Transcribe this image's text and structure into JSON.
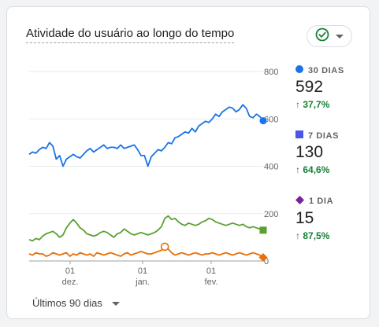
{
  "card": {
    "title": "Atividade do usuário ao longo do tempo",
    "status_icon": "check-circle-icon",
    "menu_icon": "caret-down-icon"
  },
  "legend": [
    {
      "label": "30 DIAS",
      "value": "592",
      "change": "37,7%",
      "color": "#1a73e8",
      "marker": "circle"
    },
    {
      "label": "7 DIAS",
      "value": "130",
      "change": "64,6%",
      "color": "#4c56e6",
      "marker": "square"
    },
    {
      "label": "1 DIA",
      "value": "15",
      "change": "87,5%",
      "color": "#7b1fa2",
      "marker": "diamond"
    }
  ],
  "date_range": {
    "label": "Últimos 90 dias"
  },
  "chart_data": {
    "type": "line",
    "x_tick_labels": [
      {
        "day": "01",
        "month": "dez."
      },
      {
        "day": "01",
        "month": "jan."
      },
      {
        "day": "01",
        "month": "fev."
      }
    ],
    "y_ticks": [
      0,
      200,
      400,
      600,
      800
    ],
    "ylim": [
      0,
      800
    ],
    "grid": true,
    "series": [
      {
        "name": "30 DIAS",
        "color": "#1a73e8",
        "values": [
          450,
          460,
          455,
          470,
          480,
          475,
          500,
          485,
          430,
          445,
          400,
          430,
          440,
          450,
          440,
          435,
          450,
          465,
          475,
          460,
          470,
          480,
          490,
          475,
          480,
          480,
          475,
          490,
          475,
          480,
          485,
          490,
          470,
          445,
          445,
          400,
          440,
          455,
          470,
          465,
          480,
          500,
          495,
          520,
          525,
          535,
          545,
          540,
          560,
          545,
          570,
          580,
          590,
          585,
          600,
          620,
          610,
          630,
          640,
          650,
          645,
          630,
          640,
          660,
          645,
          610,
          605,
          620,
          610,
          592
        ]
      },
      {
        "name": "7 DIAS",
        "color": "#5ba032",
        "values": [
          90,
          85,
          95,
          90,
          105,
          115,
          120,
          125,
          115,
          100,
          110,
          140,
          160,
          175,
          160,
          140,
          130,
          115,
          110,
          105,
          110,
          120,
          125,
          120,
          110,
          100,
          115,
          120,
          135,
          125,
          115,
          110,
          115,
          120,
          115,
          110,
          115,
          120,
          130,
          145,
          180,
          190,
          175,
          180,
          165,
          155,
          150,
          160,
          155,
          150,
          155,
          165,
          170,
          180,
          175,
          165,
          160,
          155,
          150,
          155,
          160,
          155,
          150,
          155,
          145,
          140,
          145,
          140,
          135,
          130
        ]
      },
      {
        "name": "1 DIA",
        "color": "#e8710a",
        "values": [
          30,
          25,
          35,
          30,
          30,
          20,
          25,
          35,
          30,
          25,
          30,
          35,
          20,
          30,
          25,
          35,
          30,
          25,
          30,
          20,
          35,
          30,
          25,
          30,
          35,
          30,
          25,
          20,
          30,
          35,
          25,
          30,
          35,
          40,
          35,
          30,
          30,
          35,
          40,
          45,
          60,
          50,
          35,
          25,
          30,
          35,
          30,
          25,
          30,
          35,
          30,
          25,
          30,
          30,
          35,
          30,
          25,
          30,
          35,
          30,
          25,
          30,
          35,
          30,
          25,
          30,
          35,
          30,
          25,
          15
        ]
      }
    ],
    "annotation_marker": {
      "series": "1 DIA",
      "index": 40,
      "value": 60
    }
  }
}
